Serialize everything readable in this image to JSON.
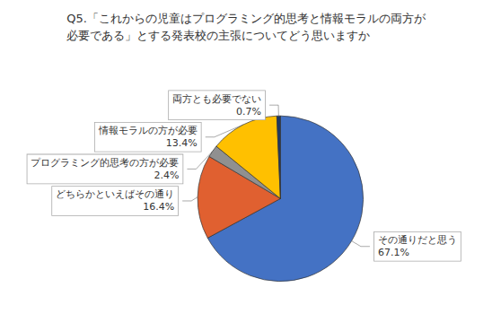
{
  "chart_data": {
    "type": "pie",
    "title": "Q5.「これからの児童はプログラミング的思考と情報モラルの両方が\n必要である」とする発表校の主張についてどう思いますか",
    "categories": [
      "その通りだと思う",
      "どちらかといえばその通り",
      "プログラミング的思考の方が必要",
      "情報モラルの方が必要",
      "両方とも必要でない"
    ],
    "values": [
      67.1,
      16.4,
      2.4,
      13.4,
      0.7
    ],
    "value_labels": [
      "67.1%",
      "16.4%",
      "2.4%",
      "13.4%",
      "0.7%"
    ],
    "colors": [
      "#4472C4",
      "#E06030",
      "#909090",
      "#FFC000",
      "#1F3864"
    ],
    "data_labels": true
  }
}
